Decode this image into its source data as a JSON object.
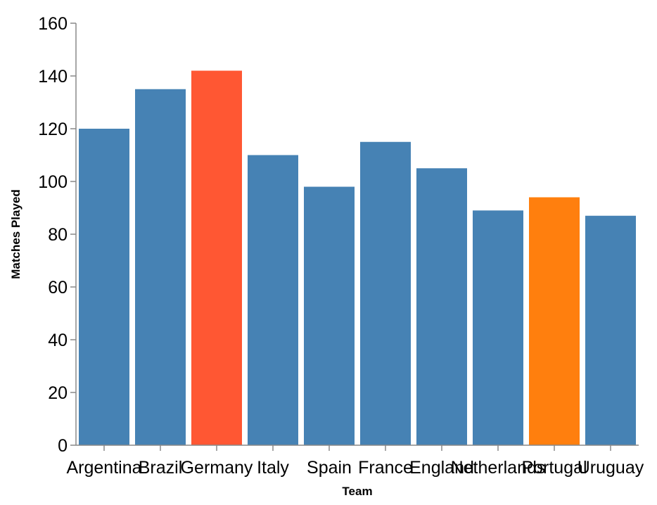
{
  "chart_data": {
    "type": "bar",
    "categories": [
      "Argentina",
      "Brazil",
      "Germany",
      "Italy",
      "Spain",
      "France",
      "England",
      "Netherlands",
      "Portugal",
      "Uruguay"
    ],
    "values": [
      120,
      135,
      142,
      110,
      98,
      115,
      105,
      89,
      94,
      87
    ],
    "bar_colors": [
      "#4682b4",
      "#4682b4",
      "#ff5733",
      "#4682b4",
      "#4682b4",
      "#4682b4",
      "#4682b4",
      "#4682b4",
      "#ff7f0e",
      "#4682b4"
    ],
    "xlabel": "Team",
    "ylabel": "Matches Played",
    "ylim": [
      0,
      160
    ],
    "yticks": [
      0,
      20,
      40,
      60,
      80,
      100,
      120,
      140,
      160
    ],
    "grid": false
  }
}
